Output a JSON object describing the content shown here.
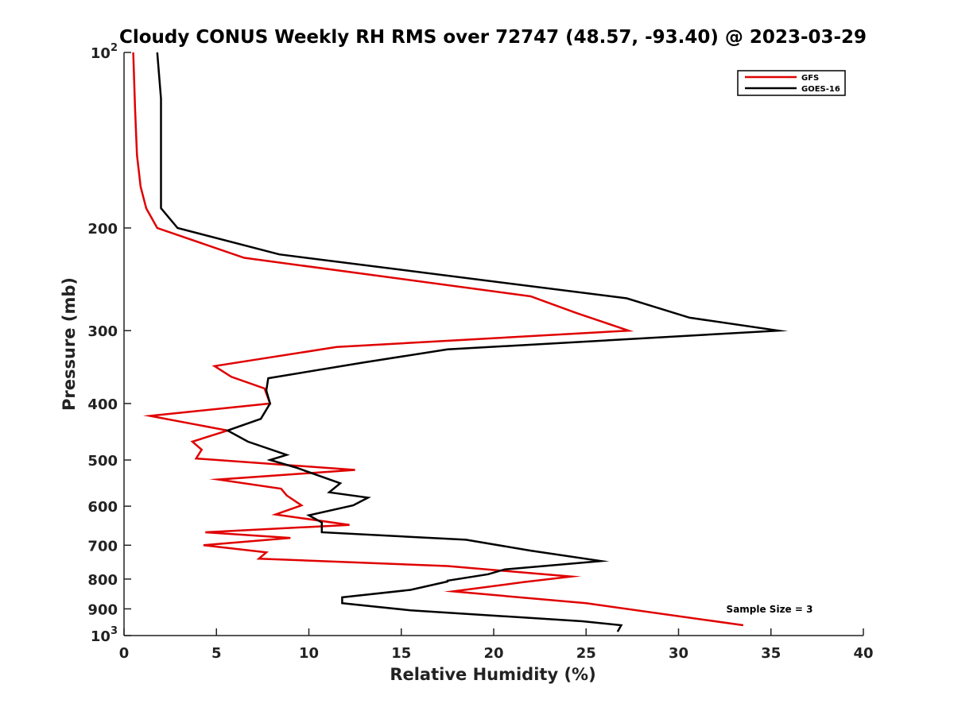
{
  "chart_data": {
    "type": "line",
    "title": "Cloudy CONUS Weekly RH RMS over 72747 (48.57, -93.40) @ 2023-03-29",
    "xlabel": "Relative Humidity (%)",
    "ylabel": "Pressure (mb)",
    "xlim": [
      0,
      40
    ],
    "ylim": [
      100,
      1000
    ],
    "y_scale": "log",
    "y_reversed": true,
    "x_ticks": [
      0,
      5,
      10,
      15,
      20,
      25,
      30,
      35,
      40
    ],
    "y_ticks": [
      {
        "value": 100,
        "base": "10",
        "exp": "2"
      },
      {
        "value": 200,
        "label": "200"
      },
      {
        "value": 300,
        "label": "300"
      },
      {
        "value": 400,
        "label": "400"
      },
      {
        "value": 500,
        "label": "500"
      },
      {
        "value": 600,
        "label": "600"
      },
      {
        "value": 700,
        "label": "700"
      },
      {
        "value": 800,
        "label": "800"
      },
      {
        "value": 900,
        "label": "900"
      },
      {
        "value": 1000,
        "base": "10",
        "exp": "3"
      }
    ],
    "series": [
      {
        "name": "GFS",
        "color": "#e00000",
        "points": [
          [
            0.5,
            100
          ],
          [
            0.6,
            125
          ],
          [
            0.7,
            150
          ],
          [
            0.9,
            170
          ],
          [
            1.2,
            185
          ],
          [
            1.8,
            200
          ],
          [
            6.5,
            225
          ],
          [
            22,
            262
          ],
          [
            24.5,
            280
          ],
          [
            27.3,
            300
          ],
          [
            11.5,
            320
          ],
          [
            4.9,
            345
          ],
          [
            5.8,
            360
          ],
          [
            7.6,
            377
          ],
          [
            7.9,
            400
          ],
          [
            1.4,
            420
          ],
          [
            5.6,
            445
          ],
          [
            3.7,
            465
          ],
          [
            4.2,
            480
          ],
          [
            3.9,
            497
          ],
          [
            12.5,
            520
          ],
          [
            5.1,
            540
          ],
          [
            8.5,
            560
          ],
          [
            8.8,
            575
          ],
          [
            9.6,
            598
          ],
          [
            8.2,
            620
          ],
          [
            12.2,
            646
          ],
          [
            4.4,
            665
          ],
          [
            9.0,
            680
          ],
          [
            4.3,
            700
          ],
          [
            7.7,
            720
          ],
          [
            7.3,
            738
          ],
          [
            17.5,
            760
          ],
          [
            24.2,
            792
          ],
          [
            21.6,
            810
          ],
          [
            17.8,
            840
          ],
          [
            25.0,
            880
          ],
          [
            33.5,
            960
          ]
        ]
      },
      {
        "name": "GOES-16",
        "color": "#000000",
        "points": [
          [
            1.8,
            100
          ],
          [
            2.0,
            120
          ],
          [
            2.0,
            160
          ],
          [
            2.0,
            185
          ],
          [
            2.9,
            200
          ],
          [
            8.4,
            222
          ],
          [
            27.2,
            264
          ],
          [
            30.6,
            285
          ],
          [
            35.4,
            300
          ],
          [
            17.5,
            323
          ],
          [
            13.0,
            340
          ],
          [
            7.8,
            362
          ],
          [
            7.7,
            380
          ],
          [
            7.9,
            400
          ],
          [
            7.4,
            425
          ],
          [
            5.6,
            445
          ],
          [
            6.7,
            465
          ],
          [
            8.8,
            490
          ],
          [
            7.9,
            500
          ],
          [
            9.3,
            515
          ],
          [
            11.7,
            548
          ],
          [
            11.1,
            568
          ],
          [
            13.2,
            580
          ],
          [
            12.4,
            598
          ],
          [
            10.0,
            622
          ],
          [
            10.7,
            640
          ],
          [
            10.7,
            665
          ],
          [
            18.5,
            685
          ],
          [
            22.0,
            715
          ],
          [
            25.8,
            745
          ],
          [
            20.6,
            770
          ],
          [
            19.7,
            785
          ],
          [
            17.5,
            805
          ],
          [
            17.5,
            808
          ],
          [
            15.5,
            835
          ],
          [
            11.8,
            860
          ],
          [
            11.8,
            880
          ],
          [
            15.5,
            905
          ],
          [
            24.8,
            945
          ],
          [
            26.9,
            960
          ],
          [
            26.7,
            985
          ]
        ]
      }
    ],
    "legend": {
      "position": "top-right",
      "entries": [
        "GFS",
        "GOES-16"
      ]
    },
    "annotation": "Sample Size = 3"
  }
}
